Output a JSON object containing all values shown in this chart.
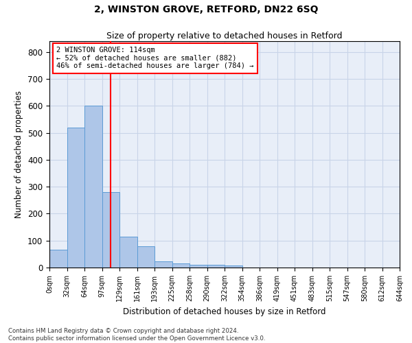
{
  "title": "2, WINSTON GROVE, RETFORD, DN22 6SQ",
  "subtitle": "Size of property relative to detached houses in Retford",
  "xlabel": "Distribution of detached houses by size in Retford",
  "ylabel": "Number of detached properties",
  "bar_values": [
    65,
    520,
    600,
    280,
    115,
    78,
    22,
    15,
    10,
    10,
    8,
    0,
    0,
    0,
    0,
    0,
    0,
    0,
    0,
    0
  ],
  "bin_labels": [
    "0sqm",
    "32sqm",
    "64sqm",
    "97sqm",
    "129sqm",
    "161sqm",
    "193sqm",
    "225sqm",
    "258sqm",
    "290sqm",
    "322sqm",
    "354sqm",
    "386sqm",
    "419sqm",
    "451sqm",
    "483sqm",
    "515sqm",
    "547sqm",
    "580sqm",
    "612sqm",
    "644sqm"
  ],
  "bar_color": "#aec6e8",
  "bar_edge_color": "#5b9bd5",
  "grid_color": "#c8d4e8",
  "bg_color": "#e8eef8",
  "red_line_x": 3.5,
  "annotation_text": "2 WINSTON GROVE: 114sqm\n← 52% of detached houses are smaller (882)\n46% of semi-detached houses are larger (784) →",
  "annotation_box_color": "white",
  "annotation_box_edge": "red",
  "ylim": [
    0,
    840
  ],
  "yticks": [
    0,
    100,
    200,
    300,
    400,
    500,
    600,
    700,
    800
  ],
  "footer": "Contains HM Land Registry data © Crown copyright and database right 2024.\nContains public sector information licensed under the Open Government Licence v3.0.",
  "num_bins": 20,
  "title_fontsize": 10,
  "subtitle_fontsize": 9
}
